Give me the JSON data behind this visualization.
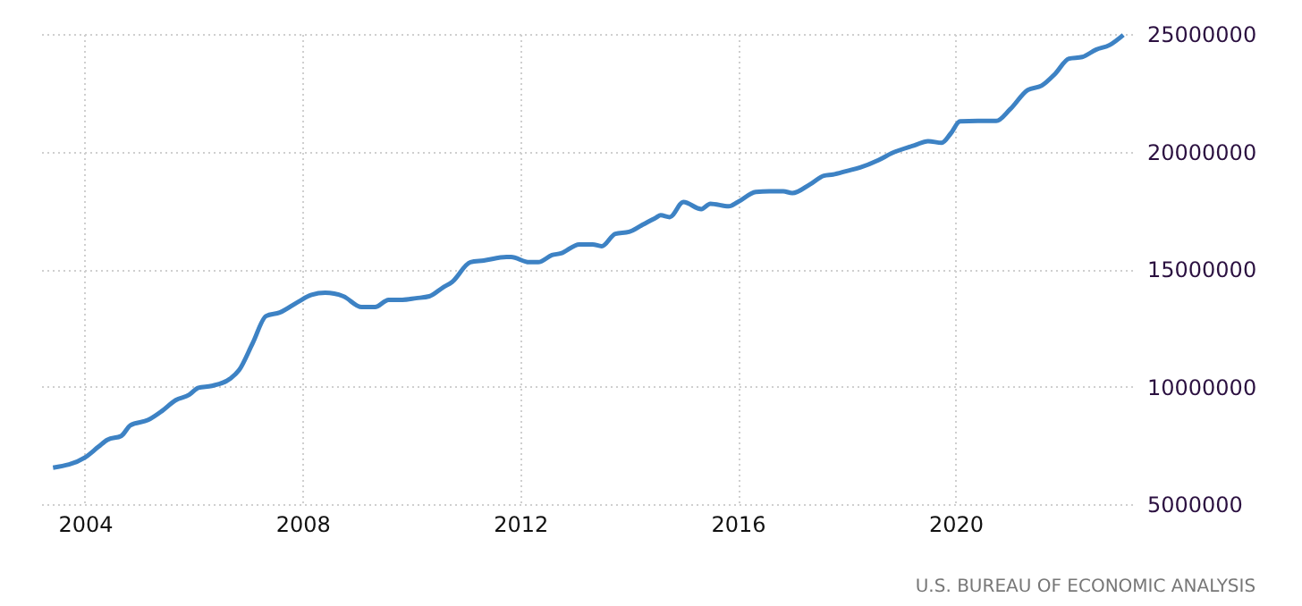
{
  "chart_data": {
    "type": "line",
    "x": [
      "2003-06",
      "2004-01",
      "2004-04",
      "2004-06",
      "2004-09",
      "2004-11",
      "2005-03",
      "2005-06",
      "2005-09",
      "2005-12",
      "2006-02",
      "2006-05",
      "2006-09",
      "2006-11",
      "2007-02",
      "2007-05",
      "2007-08",
      "2007-12",
      "2008-03",
      "2008-06",
      "2008-10",
      "2009-02",
      "2009-05",
      "2009-08",
      "2009-11",
      "2010-02",
      "2010-05",
      "2010-08",
      "2010-10",
      "2011-02",
      "2011-05",
      "2011-10",
      "2011-11",
      "2012-03",
      "2012-05",
      "2012-08",
      "2012-10",
      "2013-02",
      "2013-05",
      "2013-07",
      "2013-10",
      "2014-01",
      "2014-04",
      "2014-07",
      "2014-08",
      "2014-10",
      "2015-01",
      "2015-05",
      "2015-07",
      "2015-11",
      "2016-01",
      "2016-05",
      "2016-08",
      "2016-11",
      "2017-01",
      "2017-05",
      "2017-08",
      "2017-10",
      "2018-01",
      "2018-04",
      "2018-08",
      "2018-11",
      "2019-04",
      "2019-07",
      "2019-10",
      "2019-12",
      "2020-02",
      "2020-06",
      "2020-10",
      "2021-01",
      "2021-05",
      "2021-08",
      "2021-11",
      "2022-02",
      "2022-05",
      "2022-08",
      "2022-11",
      "2023-02"
    ],
    "series": [
      {
        "color": "#3d82c4",
        "values": [
          6550000,
          6980000,
          7440000,
          7740000,
          7900000,
          8350000,
          8580000,
          8960000,
          9420000,
          9650000,
          9950000,
          10030000,
          10330000,
          10700000,
          11860000,
          13000000,
          13150000,
          13600000,
          13900000,
          13990000,
          13840000,
          13380000,
          13380000,
          13690000,
          13690000,
          13760000,
          13840000,
          14220000,
          14450000,
          15290000,
          15360000,
          15510000,
          15510000,
          15290000,
          15290000,
          15590000,
          15670000,
          16050000,
          16050000,
          15970000,
          16500000,
          16580000,
          16880000,
          17190000,
          17290000,
          17210000,
          17850000,
          17550000,
          17780000,
          17670000,
          17850000,
          18280000,
          18310000,
          18310000,
          18230000,
          18610000,
          18970000,
          19020000,
          19170000,
          19320000,
          19630000,
          19930000,
          20260000,
          20440000,
          20370000,
          20770000,
          21280000,
          21300000,
          21300000,
          21790000,
          22620000,
          22800000,
          23310000,
          23950000,
          24020000,
          24330000,
          24530000,
          24960000
        ]
      }
    ],
    "xlim": [
      "2003-03",
      "2023-04"
    ],
    "xticks": [
      "2004",
      "2008",
      "2012",
      "2016",
      "2020"
    ],
    "ylim": [
      5000000,
      25000000
    ],
    "yticks": [
      5000000,
      10000000,
      15000000,
      20000000,
      25000000
    ],
    "grid": true,
    "annotations": [
      "U.S. BUREAU OF ECONOMIC ANALYSIS"
    ]
  }
}
